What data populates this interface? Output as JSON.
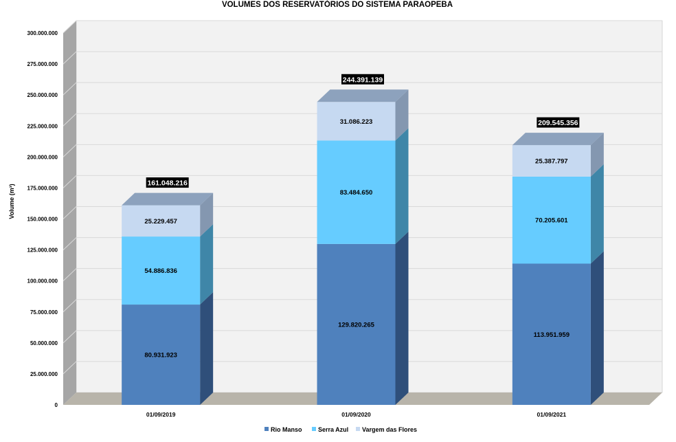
{
  "chart_data": {
    "type": "bar",
    "stacked": true,
    "three_d": true,
    "title": "VOLUMES DOS RESERVATÓRIOS DO SISTEMA PARAOPEBA",
    "xlabel": "",
    "ylabel": "Volume (m³)",
    "ylim": [
      0,
      300000000
    ],
    "ytick_step": 25000000,
    "yticks": [
      "0",
      "25.000.000",
      "50.000.000",
      "75.000.000",
      "100.000.000",
      "125.000.000",
      "150.000.000",
      "175.000.000",
      "200.000.000",
      "225.000.000",
      "250.000.000",
      "275.000.000",
      "300.000.000"
    ],
    "grid": true,
    "legend_position": "bottom",
    "categories": [
      "01/09/2019",
      "01/09/2020",
      "01/09/2021"
    ],
    "series": [
      {
        "name": "Rio Manso",
        "values": [
          80931923,
          129820265,
          113951959
        ],
        "labels": [
          "80.931.923",
          "129.820.265",
          "113.951.959"
        ],
        "color": "#4f81bd",
        "side_color": "#2f4f7a",
        "top_color": "#6f94c4"
      },
      {
        "name": "Serra Azul",
        "values": [
          54886836,
          83484650,
          70205601
        ],
        "labels": [
          "54.886.836",
          "83.484.650",
          "70.205.601"
        ],
        "color": "#66ccff",
        "side_color": "#3f86a8",
        "top_color": "#8fd8ff"
      },
      {
        "name": "Vargem das Flores",
        "values": [
          25229457,
          31086223,
          25387797
        ],
        "labels": [
          "25.229.457",
          "31.086.223",
          "25.387.797"
        ],
        "color": "#c6d9f1",
        "side_color": "#8497b0",
        "top_color": "#8da2bd"
      }
    ],
    "totals": [
      161048216,
      244391139,
      209545356
    ],
    "total_labels": [
      "161.048.216",
      "244.391.139",
      "209.545.356"
    ],
    "colors": {
      "wall": "#f2f2f2",
      "side_wall": "#a6a6a6",
      "floor": "#b8b4aa",
      "gridline": "#d9d9d9",
      "total_label_bg": "#000000"
    }
  }
}
